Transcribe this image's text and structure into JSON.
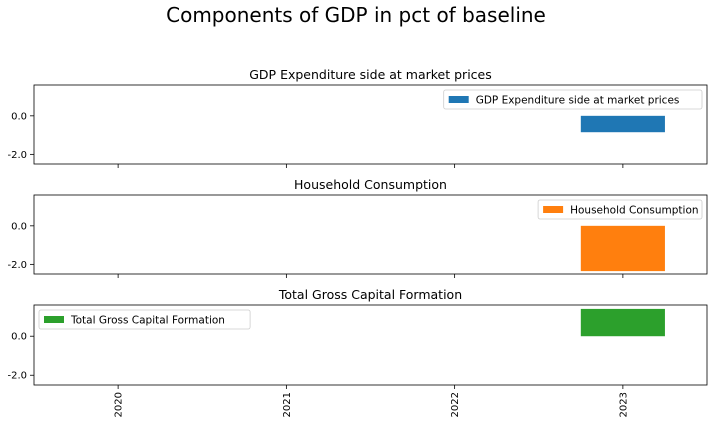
{
  "suptitle": "Components of GDP in pct of baseline",
  "chart_data": [
    {
      "type": "bar",
      "title": "GDP Expenditure side at market prices",
      "categories": [
        "2020",
        "2021",
        "2022",
        "2023"
      ],
      "series": [
        {
          "name": "GDP Expenditure side at market prices",
          "values": [
            0,
            0,
            0,
            -0.85
          ],
          "color": "#1f77b4"
        }
      ],
      "ylim": [
        -2.5,
        1.6
      ],
      "yticks": [
        "0.0",
        "-2.0"
      ],
      "legend": "top-right",
      "xticks_visible": false
    },
    {
      "type": "bar",
      "title": "Household Consumption",
      "categories": [
        "2020",
        "2021",
        "2022",
        "2023"
      ],
      "series": [
        {
          "name": "Household Consumption",
          "values": [
            0,
            0,
            0,
            -2.35
          ],
          "color": "#ff7f0e"
        }
      ],
      "ylim": [
        -2.5,
        1.6
      ],
      "yticks": [
        "0.0",
        "-2.0"
      ],
      "legend": "top-right",
      "xticks_visible": false
    },
    {
      "type": "bar",
      "title": "Total Gross Capital Formation",
      "categories": [
        "2020",
        "2021",
        "2022",
        "2023"
      ],
      "series": [
        {
          "name": "Total Gross Capital Formation",
          "values": [
            0,
            0,
            0,
            1.4
          ],
          "color": "#2ca02c"
        }
      ],
      "ylim": [
        -2.5,
        1.6
      ],
      "yticks": [
        "0.0",
        "-2.0"
      ],
      "legend": "top-left",
      "xticks_visible": true
    }
  ]
}
